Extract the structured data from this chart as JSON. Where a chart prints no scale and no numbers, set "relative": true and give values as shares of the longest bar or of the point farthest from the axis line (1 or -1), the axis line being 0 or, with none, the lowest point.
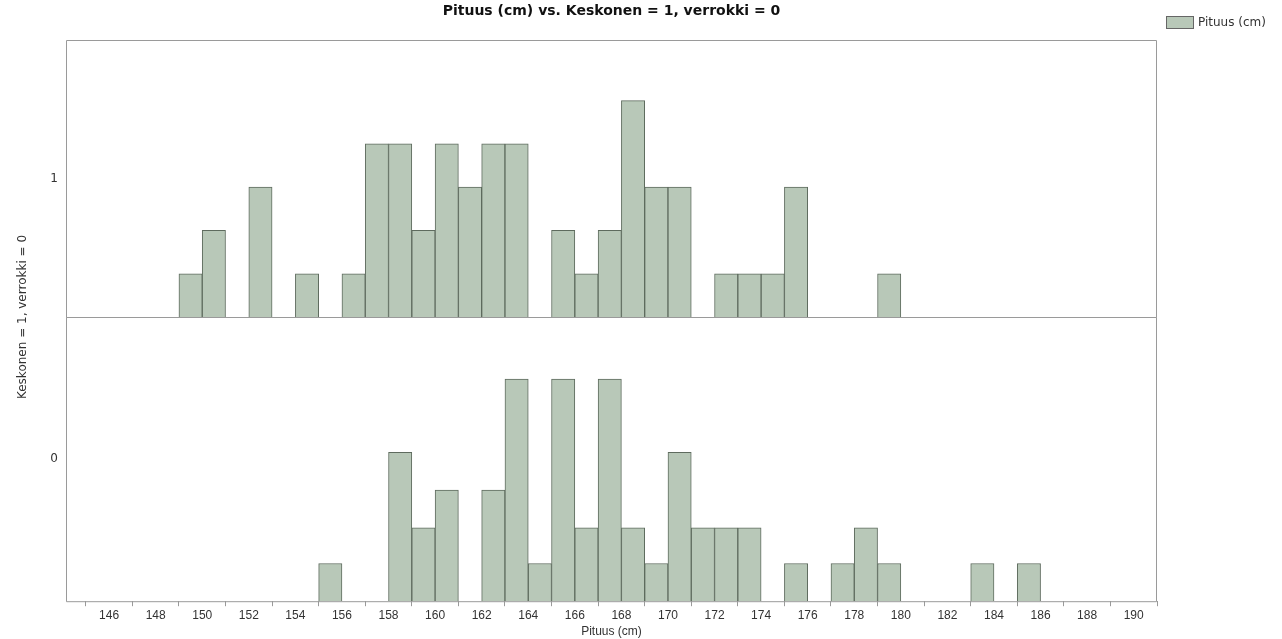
{
  "chart_data": [
    {
      "type": "bar",
      "title": "Pituus (cm) vs. Keskonen = 1, verrokki = 0",
      "ylabel": "Keskonen = 1, verrokki = 0",
      "annotations": [
        "1"
      ],
      "relative": true,
      "legend": "top right",
      "tick_labels": false,
      "x": [
        149.5,
        150.5,
        152.5,
        154.5,
        156.5,
        157.5,
        158.5,
        159.5,
        160.5,
        161.5,
        162.5,
        163.5,
        165.5,
        166.5,
        167.5,
        168.5,
        169.5,
        170.5,
        172.5,
        173.5,
        174.5,
        175.5,
        179.5
      ],
      "series": [
        {
          "name": "Pituus (cm)",
          "color": "#b8c8b8",
          "values": [
            0.2,
            0.4,
            0.6,
            0.2,
            0.2,
            0.8,
            0.8,
            0.4,
            0.8,
            0.6,
            0.8,
            0.8,
            0.4,
            0.2,
            0.4,
            1,
            0.6,
            0.6,
            0.2,
            0.2,
            0.2,
            0.6,
            0.2
          ]
        }
      ],
      "xlim": [
        144.15,
        191
      ]
    },
    {
      "type": "bar",
      "xlabel": "Pituus (cm)",
      "annotations": [
        "0"
      ],
      "relative": true,
      "tick_labels": "x",
      "x": [
        155.5,
        158.5,
        159.5,
        160.5,
        162.5,
        163.5,
        164.5,
        165.5,
        166.5,
        167.5,
        168.5,
        169.5,
        170.5,
        171.5,
        172.5,
        173.5,
        175.5,
        177.5,
        178.5,
        179.5,
        183.5,
        185.5
      ],
      "series": [
        {
          "color": "#b8c8b8",
          "values": [
            0.17,
            0.67,
            0.33,
            0.5,
            0.5,
            1,
            0.17,
            1,
            0.33,
            1,
            0.33,
            0.17,
            0.67,
            0.33,
            0.33,
            0.33,
            0.17,
            0.17,
            0.33,
            0.17,
            0.17,
            0.17
          ]
        }
      ],
      "xlim": [
        144.15,
        191
      ],
      "xticks": [
        146,
        148,
        150,
        152,
        154,
        156,
        158,
        160,
        162,
        164,
        166,
        168,
        170,
        172,
        174,
        176,
        178,
        180,
        182,
        184,
        186,
        188,
        190
      ]
    }
  ]
}
